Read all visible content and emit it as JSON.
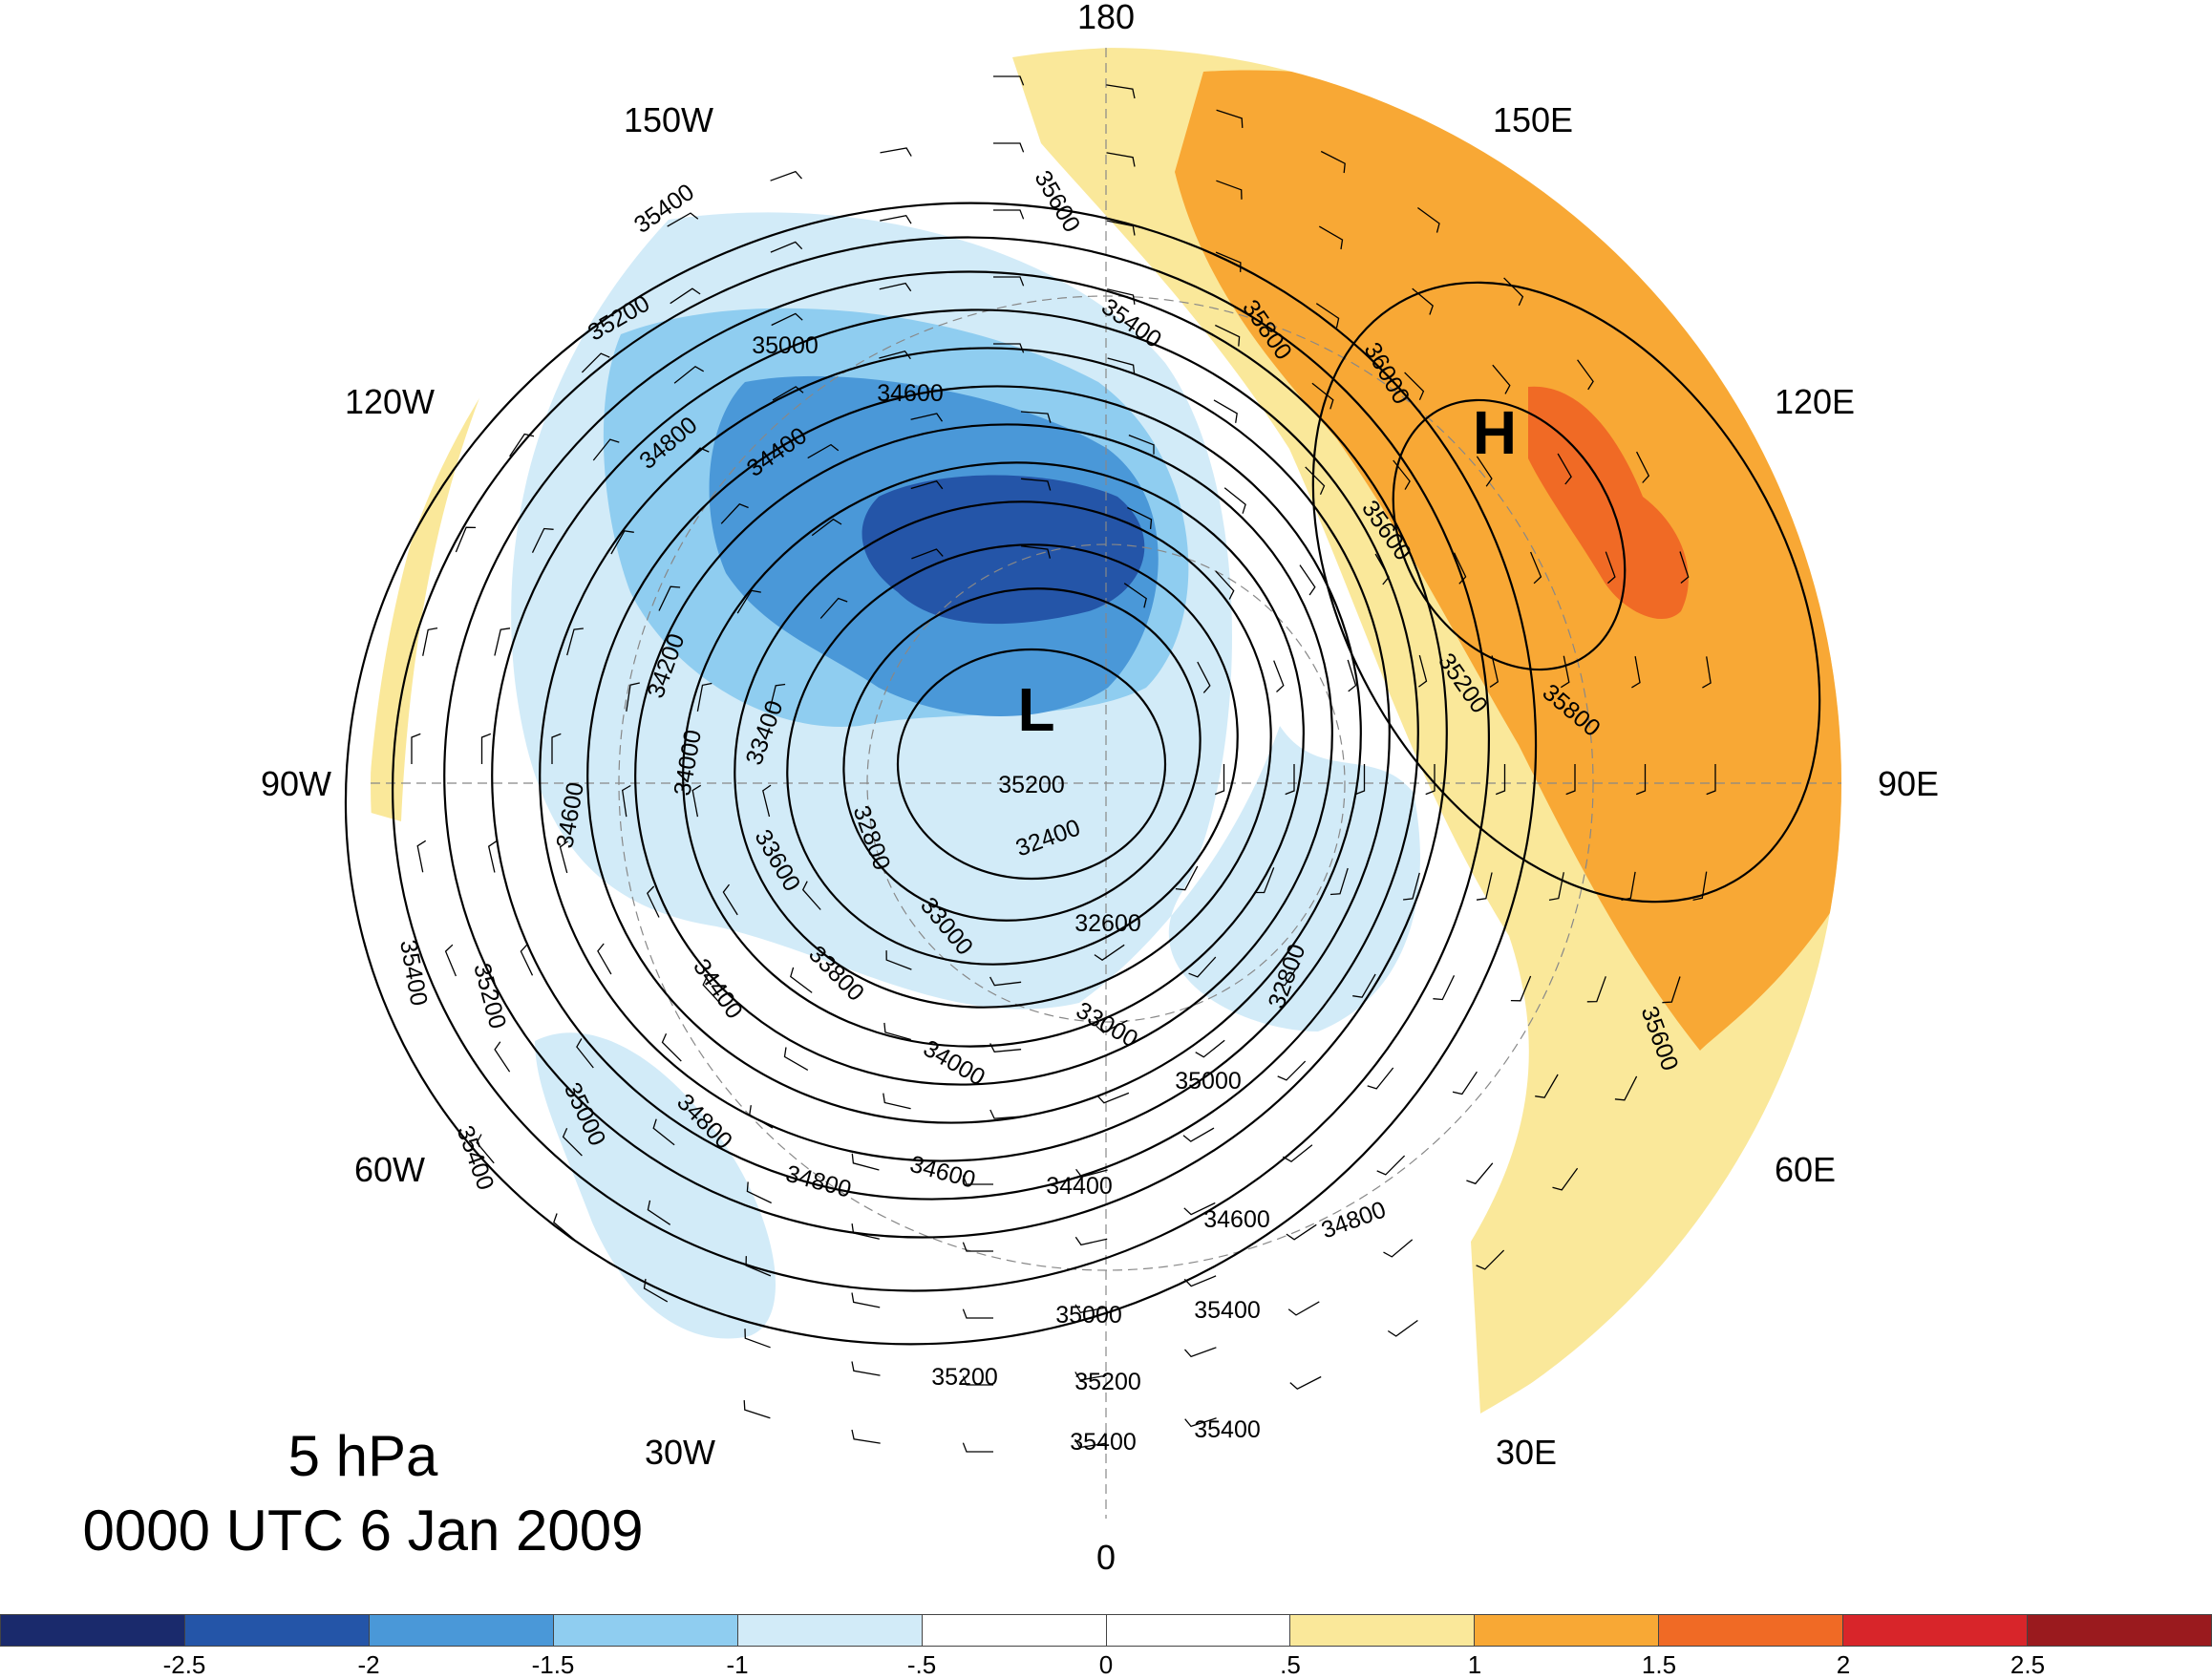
{
  "title": {
    "level": "5 hPa",
    "datetime": "0000 UTC 6 Jan 2009"
  },
  "longitude_labels": [
    "180",
    "150E",
    "120E",
    "90E",
    "60E",
    "30E",
    "0",
    "30W",
    "60W",
    "90W",
    "120W",
    "150W"
  ],
  "centers": {
    "low": "L",
    "high": "H"
  },
  "contour_labels": [
    "35400",
    "35600",
    "35200",
    "35400",
    "35800",
    "35000",
    "36000",
    "34600",
    "34800",
    "34400",
    "35600",
    "34200",
    "33400",
    "34000",
    "34600",
    "35200",
    "35800",
    "33600",
    "32800",
    "32400",
    "32600",
    "33000",
    "33800",
    "34400",
    "35200",
    "32800",
    "35400",
    "35600",
    "33000",
    "34000",
    "35000",
    "34800",
    "34600",
    "34400",
    "34600",
    "34800",
    "35400",
    "35200",
    "34800",
    "35000",
    "35000",
    "35400",
    "35200",
    "35200",
    "35400",
    "35400"
  ],
  "colorbar": {
    "colors": [
      "#1a2a6c",
      "#2455a8",
      "#4a98d8",
      "#8fcdf0",
      "#d2ebf8",
      "#ffffff",
      "#ffffff",
      "#fae89a",
      "#f8a835",
      "#f06a25",
      "#d8252a",
      "#9a1a1e"
    ],
    "tick_labels": [
      "-2.5",
      "-2",
      "-1.5",
      "-1",
      "-.5",
      "0",
      ".5",
      "1",
      "1.5",
      "2",
      "2.5"
    ]
  }
}
